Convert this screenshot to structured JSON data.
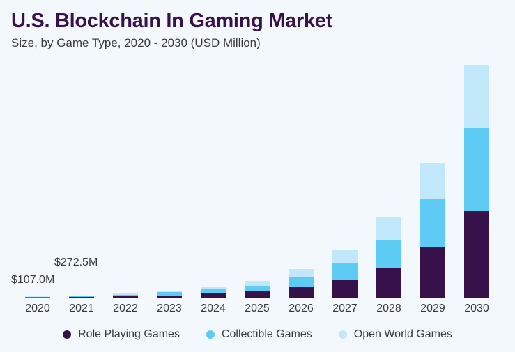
{
  "chart_data": {
    "type": "bar",
    "stacked": true,
    "title": "U.S. Blockchain In Gaming Market",
    "subtitle": "Size, by Game Type, 2020 - 2030 (USD Million)",
    "xlabel": "",
    "ylabel": "",
    "grid": false,
    "legend_position": "bottom",
    "categories": [
      "2020",
      "2021",
      "2022",
      "2023",
      "2024",
      "2025",
      "2026",
      "2027",
      "2028",
      "2029",
      "2030"
    ],
    "series": [
      {
        "name": "Role Playing Games",
        "color": "#37114a",
        "values": [
          40,
          100,
          200,
          300,
          600,
          1000,
          1500,
          2500,
          4300,
          7200,
          12500
        ]
      },
      {
        "name": "Collectible Games",
        "color": "#5ecbf5",
        "values": [
          40,
          100,
          200,
          500,
          600,
          600,
          1400,
          2500,
          4000,
          6900,
          11800
        ]
      },
      {
        "name": "Open World Games",
        "color": "#c0e8fa",
        "values": [
          27,
          72.5,
          200,
          200,
          300,
          800,
          1200,
          1800,
          3200,
          5200,
          9100
        ]
      }
    ],
    "annotations": [
      {
        "category": "2020",
        "text": "$107.0M"
      },
      {
        "category": "2021",
        "text": "$272.5M"
      }
    ]
  }
}
